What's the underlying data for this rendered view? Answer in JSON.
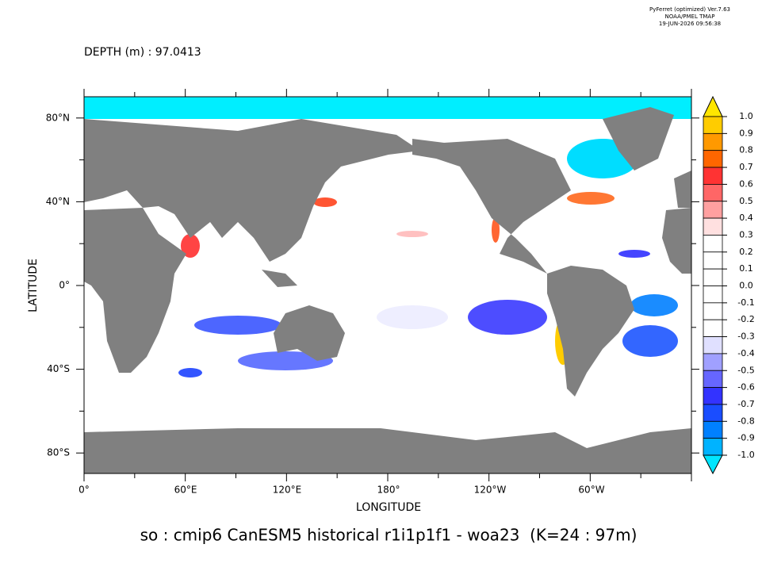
{
  "header": {
    "lines": [
      "PyFerret (optimized) Ver.7.63",
      "NOAA/PMEL TMAP",
      "19-JUN-2026 09:56:38"
    ]
  },
  "depth_label": "DEPTH (m) : 97.0413",
  "map": {
    "x_axis_label": "LONGITUDE",
    "y_axis_label": "LATITUDE",
    "x_tick_labels": [
      "0°",
      "60°E",
      "120°E",
      "180°",
      "120°W",
      "60°W"
    ],
    "y_tick_labels": [
      "80°N",
      "40°N",
      "0°",
      "40°S",
      "80°S"
    ]
  },
  "colorbar": {
    "labels": [
      "1.0",
      "0.9",
      "0.8",
      "0.7",
      "0.6",
      "0.5",
      "0.4",
      "0.3",
      "0.2",
      "0.1",
      "0.0",
      "-0.1",
      "-0.2",
      "-0.3",
      "-0.4",
      "-0.5",
      "-0.6",
      "-0.7",
      "-0.8",
      "-0.9",
      "-1.0"
    ],
    "colors": [
      "#ffe600",
      "#ffcc00",
      "#ff9900",
      "#ff6600",
      "#ff3333",
      "#ff6666",
      "#ffa0a0",
      "#ffe0e0",
      "#ffffff",
      "#ffffff",
      "#ffffff",
      "#ffffff",
      "#ffffff",
      "#ffffff",
      "#e0e0ff",
      "#a0a0ff",
      "#6666ff",
      "#3333ff",
      "#1a4dff",
      "#0080ff",
      "#00b3ff",
      "#00e5ff"
    ]
  },
  "title": "so : cmip6 CanESM5 historical r1i1p1f1 - woa23  (K=24 : 97m)"
}
